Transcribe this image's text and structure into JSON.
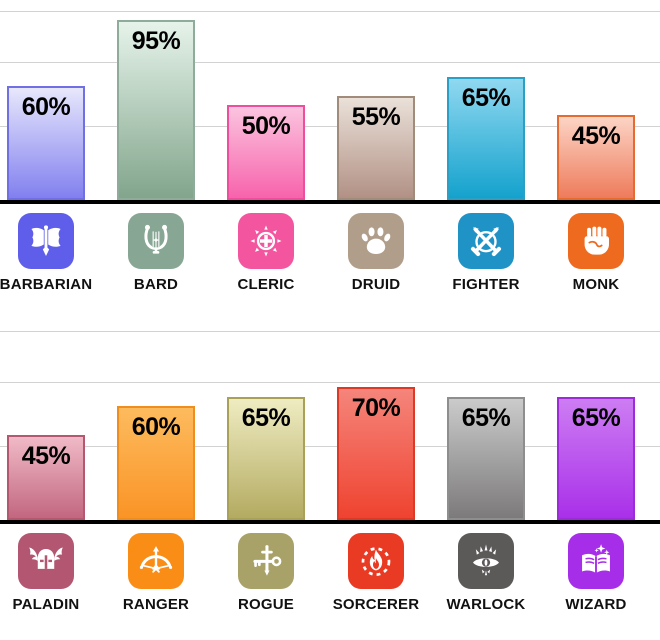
{
  "chart_data": {
    "type": "bar",
    "value_unit": "%",
    "bar_label_position": "inside-top",
    "ylim": [
      0,
      105
    ],
    "grid": true,
    "legend": false,
    "rows": [
      {
        "categories": [
          "BARBARIAN",
          "BARD",
          "CLERIC",
          "DRUID",
          "FIGHTER",
          "MONK"
        ],
        "values": [
          60,
          95,
          50,
          55,
          65,
          45
        ]
      },
      {
        "categories": [
          "PALADIN",
          "RANGER",
          "ROGUE",
          "SORCERER",
          "WARLOCK",
          "WIZARD"
        ],
        "values": [
          45,
          60,
          65,
          70,
          65,
          65
        ]
      }
    ]
  },
  "classes": [
    {
      "name": "BARBARIAN",
      "value": 60,
      "percent_label": "60%",
      "icon": "double-axe-icon",
      "colors": {
        "bar_top": "#e7e7fc",
        "bar_bottom": "#8280ef",
        "border": "#7170e2",
        "icon_bg": "#5e5eea"
      }
    },
    {
      "name": "BARD",
      "value": 95,
      "percent_label": "95%",
      "icon": "lyre-icon",
      "colors": {
        "bar_top": "#e6f3ea",
        "bar_bottom": "#82a58c",
        "border": "#8fab99",
        "icon_bg": "#87a694"
      }
    },
    {
      "name": "CLERIC",
      "value": 50,
      "percent_label": "50%",
      "icon": "holy-cross-icon",
      "colors": {
        "bar_top": "#fbc4df",
        "bar_bottom": "#f763ac",
        "border": "#ee4f9d",
        "icon_bg": "#f4559f"
      }
    },
    {
      "name": "DRUID",
      "value": 55,
      "percent_label": "55%",
      "icon": "paw-print-icon",
      "colors": {
        "bar_top": "#eae1d9",
        "bar_bottom": "#b29185",
        "border": "#a18b7b",
        "icon_bg": "#b19e8a"
      }
    },
    {
      "name": "FIGHTER",
      "value": 65,
      "percent_label": "65%",
      "icon": "crossed-swords-icon",
      "colors": {
        "bar_top": "#90d8f0",
        "bar_bottom": "#14a2cd",
        "border": "#2b9fc4",
        "icon_bg": "#2093c6"
      }
    },
    {
      "name": "MONK",
      "value": 45,
      "percent_label": "45%",
      "icon": "fist-icon",
      "colors": {
        "bar_top": "#fcd4c5",
        "bar_bottom": "#ee7b5b",
        "border": "#e66b31",
        "icon_bg": "#ed6a1f"
      }
    },
    {
      "name": "PALADIN",
      "value": 45,
      "percent_label": "45%",
      "icon": "winged-helmet-icon",
      "colors": {
        "bar_top": "#f0bac7",
        "bar_bottom": "#c2677f",
        "border": "#b4586f",
        "icon_bg": "#b25671"
      }
    },
    {
      "name": "RANGER",
      "value": 60,
      "percent_label": "60%",
      "icon": "bow-arrow-icon",
      "colors": {
        "bar_top": "#fdbb5e",
        "bar_bottom": "#fa9426",
        "border": "#ef8d1e",
        "icon_bg": "#f98d16"
      }
    },
    {
      "name": "ROGUE",
      "value": 65,
      "percent_label": "65%",
      "icon": "key-dagger-icon",
      "colors": {
        "bar_top": "#efecc2",
        "bar_bottom": "#b3ab61",
        "border": "#a9a158",
        "icon_bg": "#a9a268"
      }
    },
    {
      "name": "SORCERER",
      "value": 70,
      "percent_label": "70%",
      "icon": "flame-icon",
      "colors": {
        "bar_top": "#f5857b",
        "bar_bottom": "#ef4330",
        "border": "#dc3a26",
        "icon_bg": "#e93b24"
      }
    },
    {
      "name": "WARLOCK",
      "value": 65,
      "percent_label": "65%",
      "icon": "arcane-eye-icon",
      "colors": {
        "bar_top": "#cbcbcb",
        "bar_bottom": "#7c7a7a",
        "border": "#8e8e8e",
        "icon_bg": "#5c5959"
      }
    },
    {
      "name": "WIZARD",
      "value": 65,
      "percent_label": "65%",
      "icon": "spellbook-icon",
      "colors": {
        "bar_top": "#cd7df3",
        "bar_bottom": "#a930e9",
        "border": "#9c2bd8",
        "icon_bg": "#a72ee9"
      }
    }
  ],
  "style": {
    "background": "#ffffff",
    "gridline_color": "#d2d2d2",
    "baseline_color": "#000000",
    "bar_value_text_color": "#000000",
    "category_text_color": "#111111"
  }
}
